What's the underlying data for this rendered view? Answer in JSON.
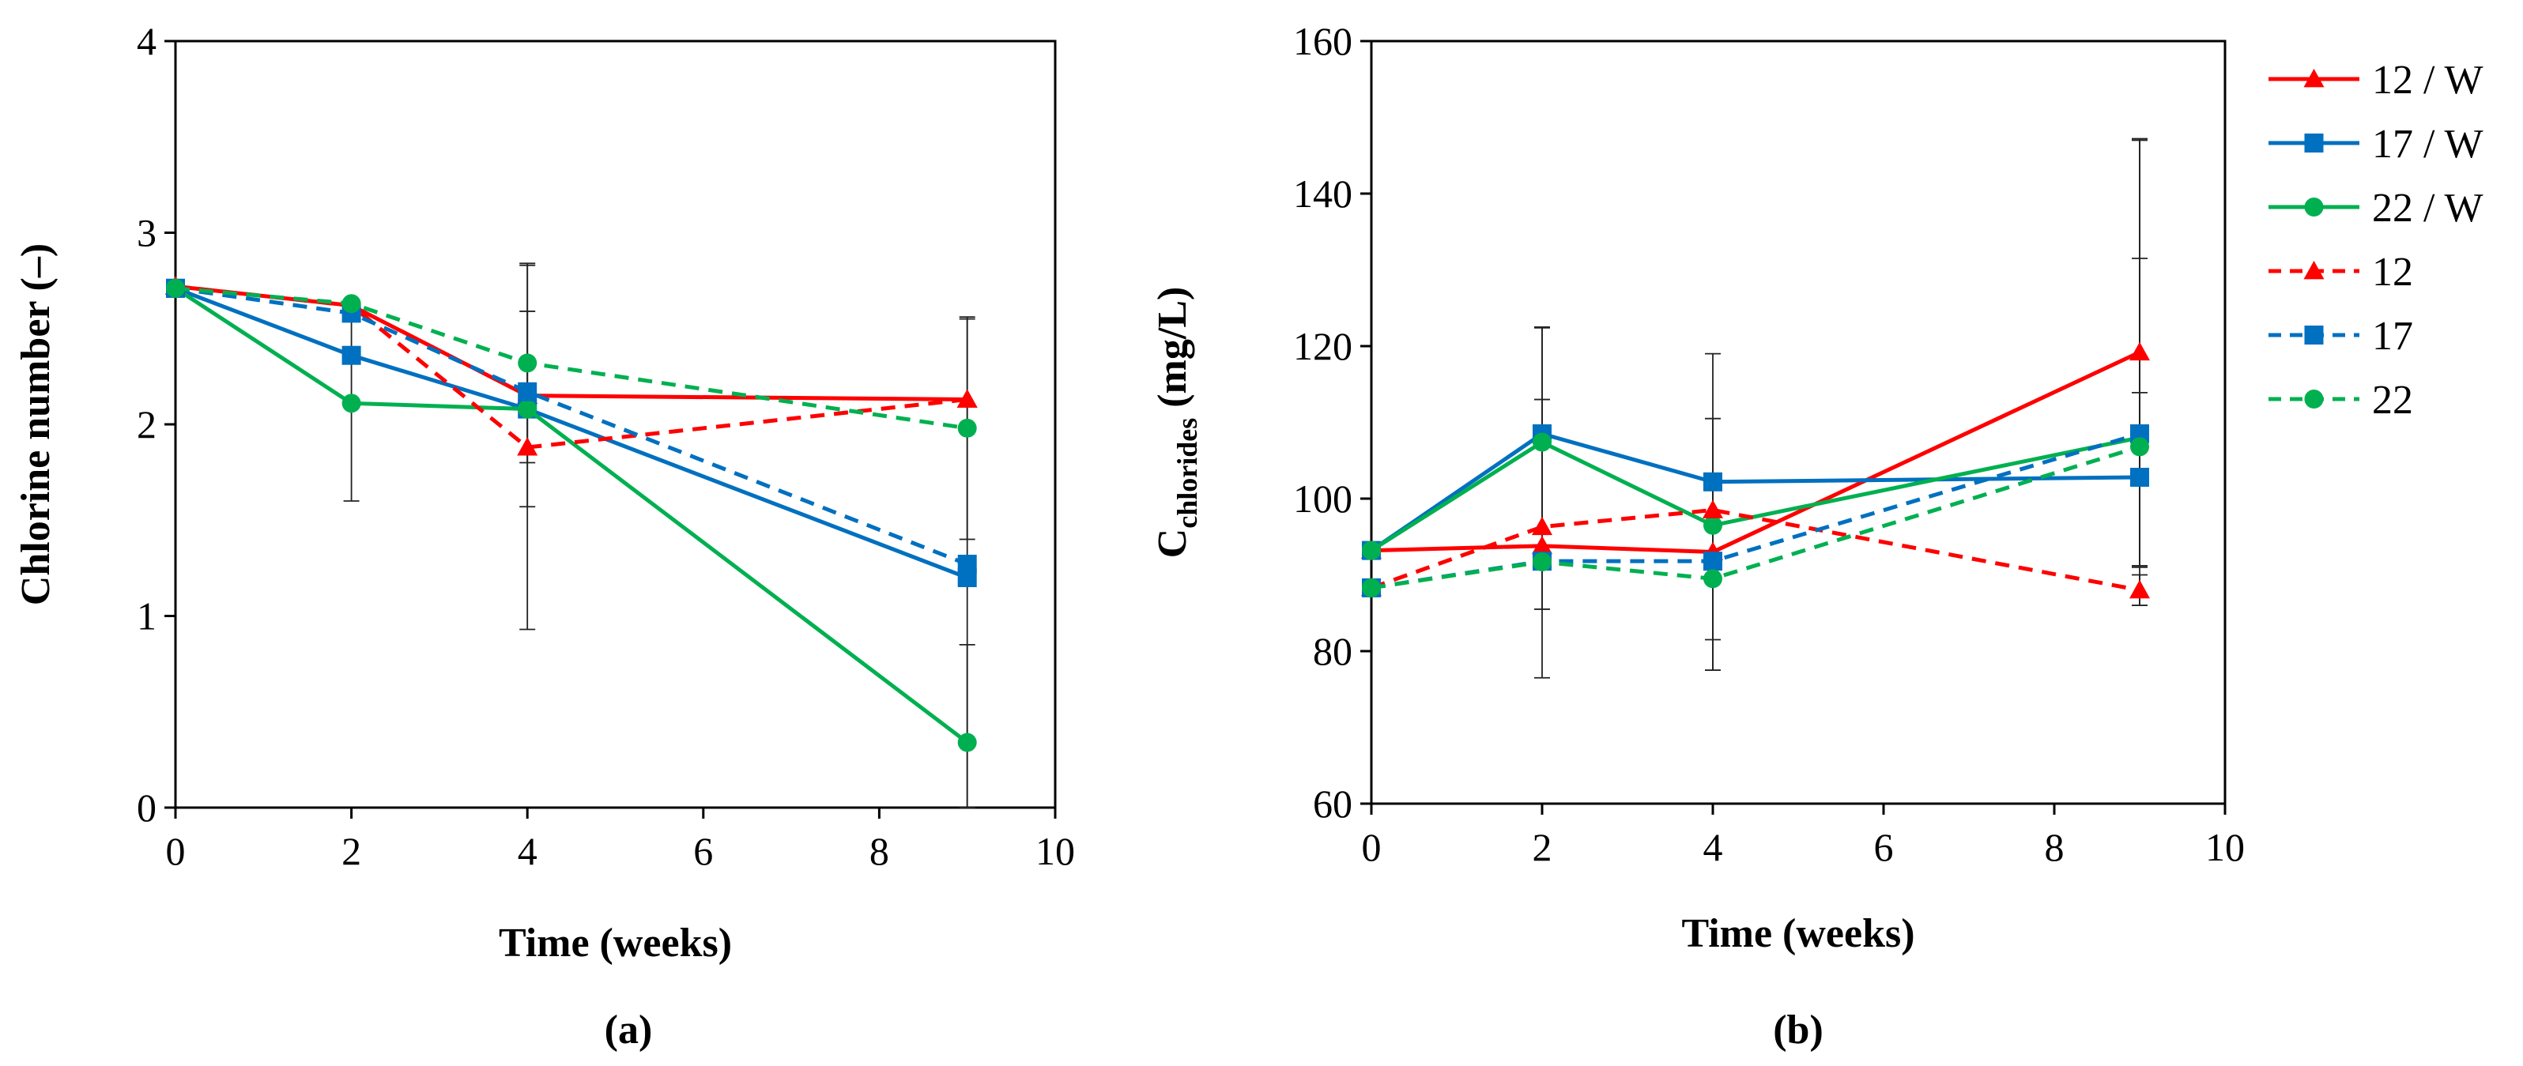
{
  "chart_data": [
    {
      "id": "a",
      "type": "line",
      "panel_label": "(a)",
      "xlabel": "Time (weeks)",
      "ylabel": "Chlorine number (–)",
      "xlim": [
        0,
        10
      ],
      "ylim": [
        0,
        4
      ],
      "xticks": [
        0,
        2,
        4,
        6,
        8,
        10
      ],
      "yticks": [
        0,
        1,
        2,
        3,
        4
      ],
      "x": [
        0,
        2,
        4,
        9
      ],
      "series": [
        {
          "name": "12 / W",
          "color": "#ff0000",
          "style": "solid",
          "marker": "triangle",
          "values": [
            2.72,
            2.62,
            2.15,
            2.13
          ],
          "errors": [
            0.0,
            0.0,
            0.0,
            0.0
          ]
        },
        {
          "name": "17 / W",
          "color": "#0070c0",
          "style": "solid",
          "marker": "square",
          "values": [
            2.71,
            2.36,
            2.08,
            1.2
          ],
          "errors": [
            0.0,
            0.0,
            0.0,
            0.0
          ]
        },
        {
          "name": "22 / W",
          "color": "#00b050",
          "style": "solid",
          "marker": "circle",
          "values": [
            2.71,
            2.11,
            2.08,
            0.34
          ],
          "errors": [
            0.0,
            0.51,
            0.51,
            0.51
          ]
        },
        {
          "name": "12",
          "color": "#ff0000",
          "style": "dashed",
          "marker": "triangle",
          "values": [
            2.72,
            2.62,
            1.88,
            2.13
          ],
          "errors": [
            0.0,
            0.0,
            0.95,
            0.0
          ]
        },
        {
          "name": "17",
          "color": "#0070c0",
          "style": "dashed",
          "marker": "square",
          "values": [
            2.71,
            2.58,
            2.17,
            1.27
          ],
          "errors": [
            0.0,
            0.0,
            0.0,
            1.28
          ]
        },
        {
          "name": "22",
          "color": "#00b050",
          "style": "dashed",
          "marker": "circle",
          "values": [
            2.71,
            2.63,
            2.32,
            1.98
          ],
          "errors": [
            0.0,
            0.0,
            0.52,
            0.58
          ]
        }
      ]
    },
    {
      "id": "b",
      "type": "line",
      "panel_label": "(b)",
      "xlabel": "Time (weeks)",
      "ylabel_main": "C",
      "ylabel_sub": "chlorides",
      "ylabel_rest": " (mg/L)",
      "xlim": [
        0,
        10
      ],
      "ylim": [
        60,
        160
      ],
      "xticks": [
        0,
        2,
        4,
        6,
        8,
        10
      ],
      "yticks": [
        60,
        80,
        100,
        120,
        140,
        160
      ],
      "x": [
        0,
        2,
        4,
        9
      ],
      "series": [
        {
          "name": "12 / W",
          "color": "#ff0000",
          "style": "solid",
          "marker": "triangle",
          "values": [
            93.2,
            93.8,
            93.0,
            119.2
          ],
          "errors": [
            0.0,
            0.0,
            0.0,
            28.0
          ]
        },
        {
          "name": "17 / W",
          "color": "#0070c0",
          "style": "solid",
          "marker": "square",
          "values": [
            93.2,
            108.5,
            102.2,
            102.8
          ],
          "errors": [
            0.0,
            0.0,
            0.0,
            0.0
          ]
        },
        {
          "name": "22 / W",
          "color": "#00b050",
          "style": "solid",
          "marker": "circle",
          "values": [
            93.2,
            107.4,
            96.5,
            108.0
          ],
          "errors": [
            0.0,
            15.0,
            0.0,
            0.0
          ]
        },
        {
          "name": "12",
          "color": "#ff0000",
          "style": "dashed",
          "marker": "triangle",
          "values": [
            88.3,
            96.3,
            98.5,
            88.0
          ],
          "errors": [
            0.0,
            0.0,
            0.0,
            2.0
          ]
        },
        {
          "name": "17",
          "color": "#0070c0",
          "style": "dashed",
          "marker": "square",
          "values": [
            88.3,
            91.8,
            91.8,
            108.5
          ],
          "errors": [
            0.0,
            0.0,
            0.0,
            5.4
          ]
        },
        {
          "name": "22",
          "color": "#00b050",
          "style": "dashed",
          "marker": "circle",
          "values": [
            88.3,
            91.7,
            89.5,
            106.8
          ],
          "errors": [
            0.0,
            0.0,
            12.0,
            0.0
          ]
        }
      ],
      "extra_error_bars": [
        {
          "x": 2,
          "low": 76.5,
          "high": 122.5
        },
        {
          "x": 2,
          "low": 85.5,
          "high": 113.0
        },
        {
          "x": 4,
          "low": 77.5,
          "high": 119.0
        },
        {
          "x": 4,
          "low": 81.5,
          "high": 110.5
        },
        {
          "x": 9,
          "low": 91.0,
          "high": 147.0
        },
        {
          "x": 9,
          "low": 86.0,
          "high": 131.5
        }
      ]
    }
  ],
  "legend": {
    "position": "right",
    "entries": [
      {
        "label": "12 / W",
        "color": "#ff0000",
        "style": "solid",
        "marker": "triangle"
      },
      {
        "label": "17 / W",
        "color": "#0070c0",
        "style": "solid",
        "marker": "square"
      },
      {
        "label": "22 / W",
        "color": "#00b050",
        "style": "solid",
        "marker": "circle"
      },
      {
        "label": "12",
        "color": "#ff0000",
        "style": "dashed",
        "marker": "triangle"
      },
      {
        "label": "17",
        "color": "#0070c0",
        "style": "dashed",
        "marker": "square"
      },
      {
        "label": "22",
        "color": "#00b050",
        "style": "dashed",
        "marker": "circle"
      }
    ]
  }
}
